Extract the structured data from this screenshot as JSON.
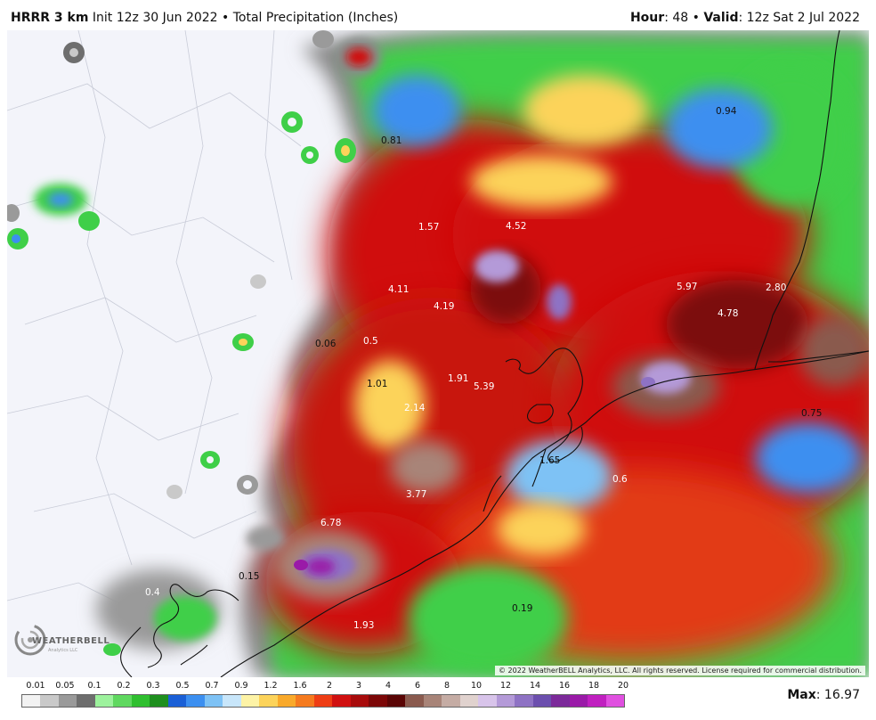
{
  "header": {
    "model": "HRRR 3 km",
    "init": "Init 12z 30 Jun 2022",
    "separator": " • ",
    "product": "Total Precipitation (Inches)",
    "hour_label": "Hour",
    "hour_value": ": 48",
    "valid_label": "Valid",
    "valid_value": ": 12z Sat 2 Jul 2022"
  },
  "map": {
    "point_labels": [
      {
        "name": "label-0-94",
        "text": "0.94"
      },
      {
        "name": "label-0-81",
        "text": "0.81"
      },
      {
        "name": "label-1-57",
        "text": "1.57"
      },
      {
        "name": "label-4-52",
        "text": "4.52"
      },
      {
        "name": "label-4-11",
        "text": "4.11"
      },
      {
        "name": "label-4-19",
        "text": "4.19"
      },
      {
        "name": "label-5-97",
        "text": "5.97"
      },
      {
        "name": "label-2-80",
        "text": "2.80"
      },
      {
        "name": "label-4-78",
        "text": "4.78"
      },
      {
        "name": "label-0-06",
        "text": "0.06"
      },
      {
        "name": "label-0-5",
        "text": "0.5"
      },
      {
        "name": "label-1-01",
        "text": "1.01"
      },
      {
        "name": "label-1-91",
        "text": "1.91"
      },
      {
        "name": "label-5-39",
        "text": "5.39"
      },
      {
        "name": "label-2-14",
        "text": "2.14"
      },
      {
        "name": "label-0-75",
        "text": "0.75"
      },
      {
        "name": "label-1-65",
        "text": "1.65"
      },
      {
        "name": "label-0-6",
        "text": "0.6"
      },
      {
        "name": "label-3-77",
        "text": "3.77"
      },
      {
        "name": "label-6-78",
        "text": "6.78"
      },
      {
        "name": "label-0-15",
        "text": "0.15"
      },
      {
        "name": "label-0-4",
        "text": "0.4"
      },
      {
        "name": "label-0-19",
        "text": "0.19"
      },
      {
        "name": "label-1-93",
        "text": "1.93"
      }
    ],
    "copyright": "© 2022 WeatherBELL Analytics, LLC. All rights reserved. License required for commercial distribution.",
    "logo_text": "WEATHERBELL",
    "logo_sub": "Analytics LLC"
  },
  "legend": {
    "labels": [
      "0.01",
      "0.05",
      "0.1",
      "0.2",
      "0.3",
      "0.5",
      "0.7",
      "0.9",
      "1.2",
      "1.6",
      "2",
      "3",
      "4",
      "6",
      "8",
      "10",
      "12",
      "14",
      "16",
      "18",
      "20"
    ],
    "colors": [
      "#f2f2f2",
      "#c9c9c9",
      "#9a9a9a",
      "#6e6e6e",
      "#9df29d",
      "#5fd85f",
      "#2fbf2f",
      "#1e8f1e",
      "#1a5fd6",
      "#3c8ff0",
      "#7ec2f5",
      "#c8e6fa",
      "#fdf3a6",
      "#fcd35a",
      "#f9a92a",
      "#f57a1e",
      "#ee3d14",
      "#d01010",
      "#a80b0b",
      "#7c0707",
      "#5a0505",
      "#8a5a4e",
      "#a88478",
      "#c5aca4",
      "#e0d2ce",
      "#d8c4ea",
      "#b49ad8",
      "#8e72c4",
      "#6c4fae",
      "#7c2a9a",
      "#9a1aa8",
      "#c020c0",
      "#e050e0"
    ]
  },
  "max": {
    "label": "Max",
    "value": ": 16.97"
  }
}
